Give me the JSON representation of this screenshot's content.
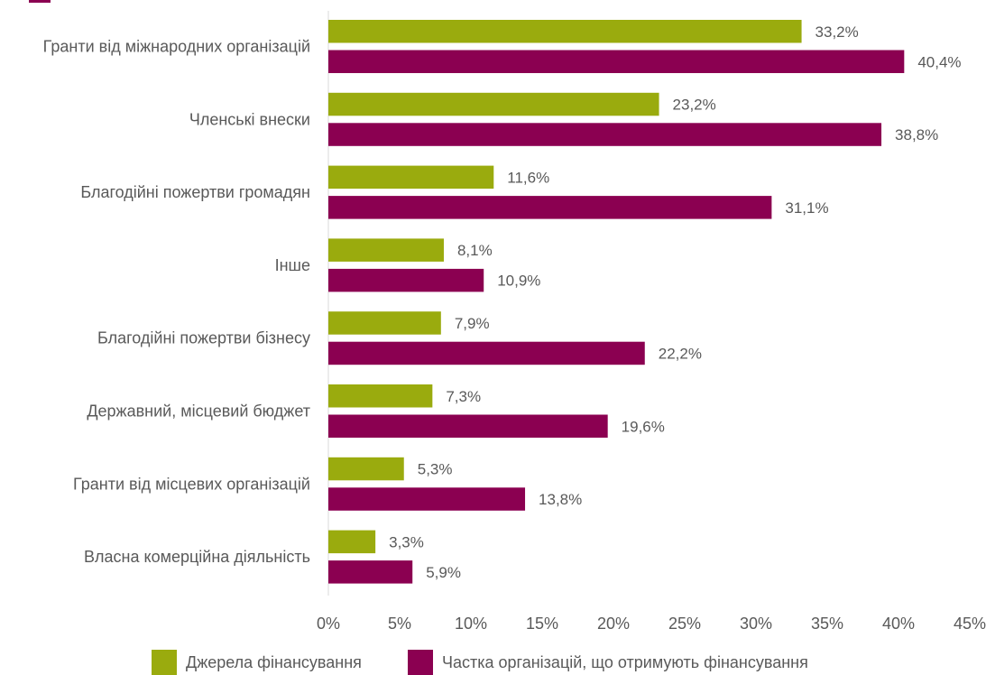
{
  "chart_data": {
    "type": "bar",
    "orientation": "horizontal",
    "categories": [
      "Гранти від міжнародних організацій",
      "Членські внески",
      "Благодійні пожертви громадян",
      "Інше",
      "Благодійні пожертви бізнесу",
      "Державний, місцевий бюджет",
      "Гранти від місцевих організацій",
      "Власна комерційна діяльність"
    ],
    "series": [
      {
        "name": "Джерела фінансування",
        "color": "#9aab0e",
        "values": [
          33.2,
          23.2,
          11.6,
          8.1,
          7.9,
          7.3,
          5.3,
          3.3
        ],
        "labels": [
          "33,2%",
          "23,2%",
          "11,6%",
          "8,1%",
          "7,9%",
          "7,3%",
          "5,3%",
          "3,3%"
        ]
      },
      {
        "name": "Частка організацій, що отримують фінансування",
        "color": "#8b0051",
        "values": [
          40.4,
          38.8,
          31.1,
          10.9,
          22.2,
          19.6,
          13.8,
          5.9
        ],
        "labels": [
          "40,4%",
          "38,8%",
          "31,1%",
          "10,9%",
          "22,2%",
          "19,6%",
          "13,8%",
          "5,9%"
        ]
      }
    ],
    "xlim": [
      0,
      45
    ],
    "xticks": [
      0,
      5,
      10,
      15,
      20,
      25,
      30,
      35,
      40,
      45
    ],
    "xtick_labels": [
      "0%",
      "5%",
      "10%",
      "15%",
      "20%",
      "25%",
      "30%",
      "35%",
      "40%",
      "45%"
    ],
    "grid": false,
    "legend_position": "bottom",
    "title": "",
    "xlabel": "",
    "ylabel": ""
  },
  "colors": {
    "accent": "#8b0051",
    "series_1": "#9aab0e",
    "series_2": "#8b0051",
    "text": "#595959",
    "axis": "#d9d9d9"
  }
}
